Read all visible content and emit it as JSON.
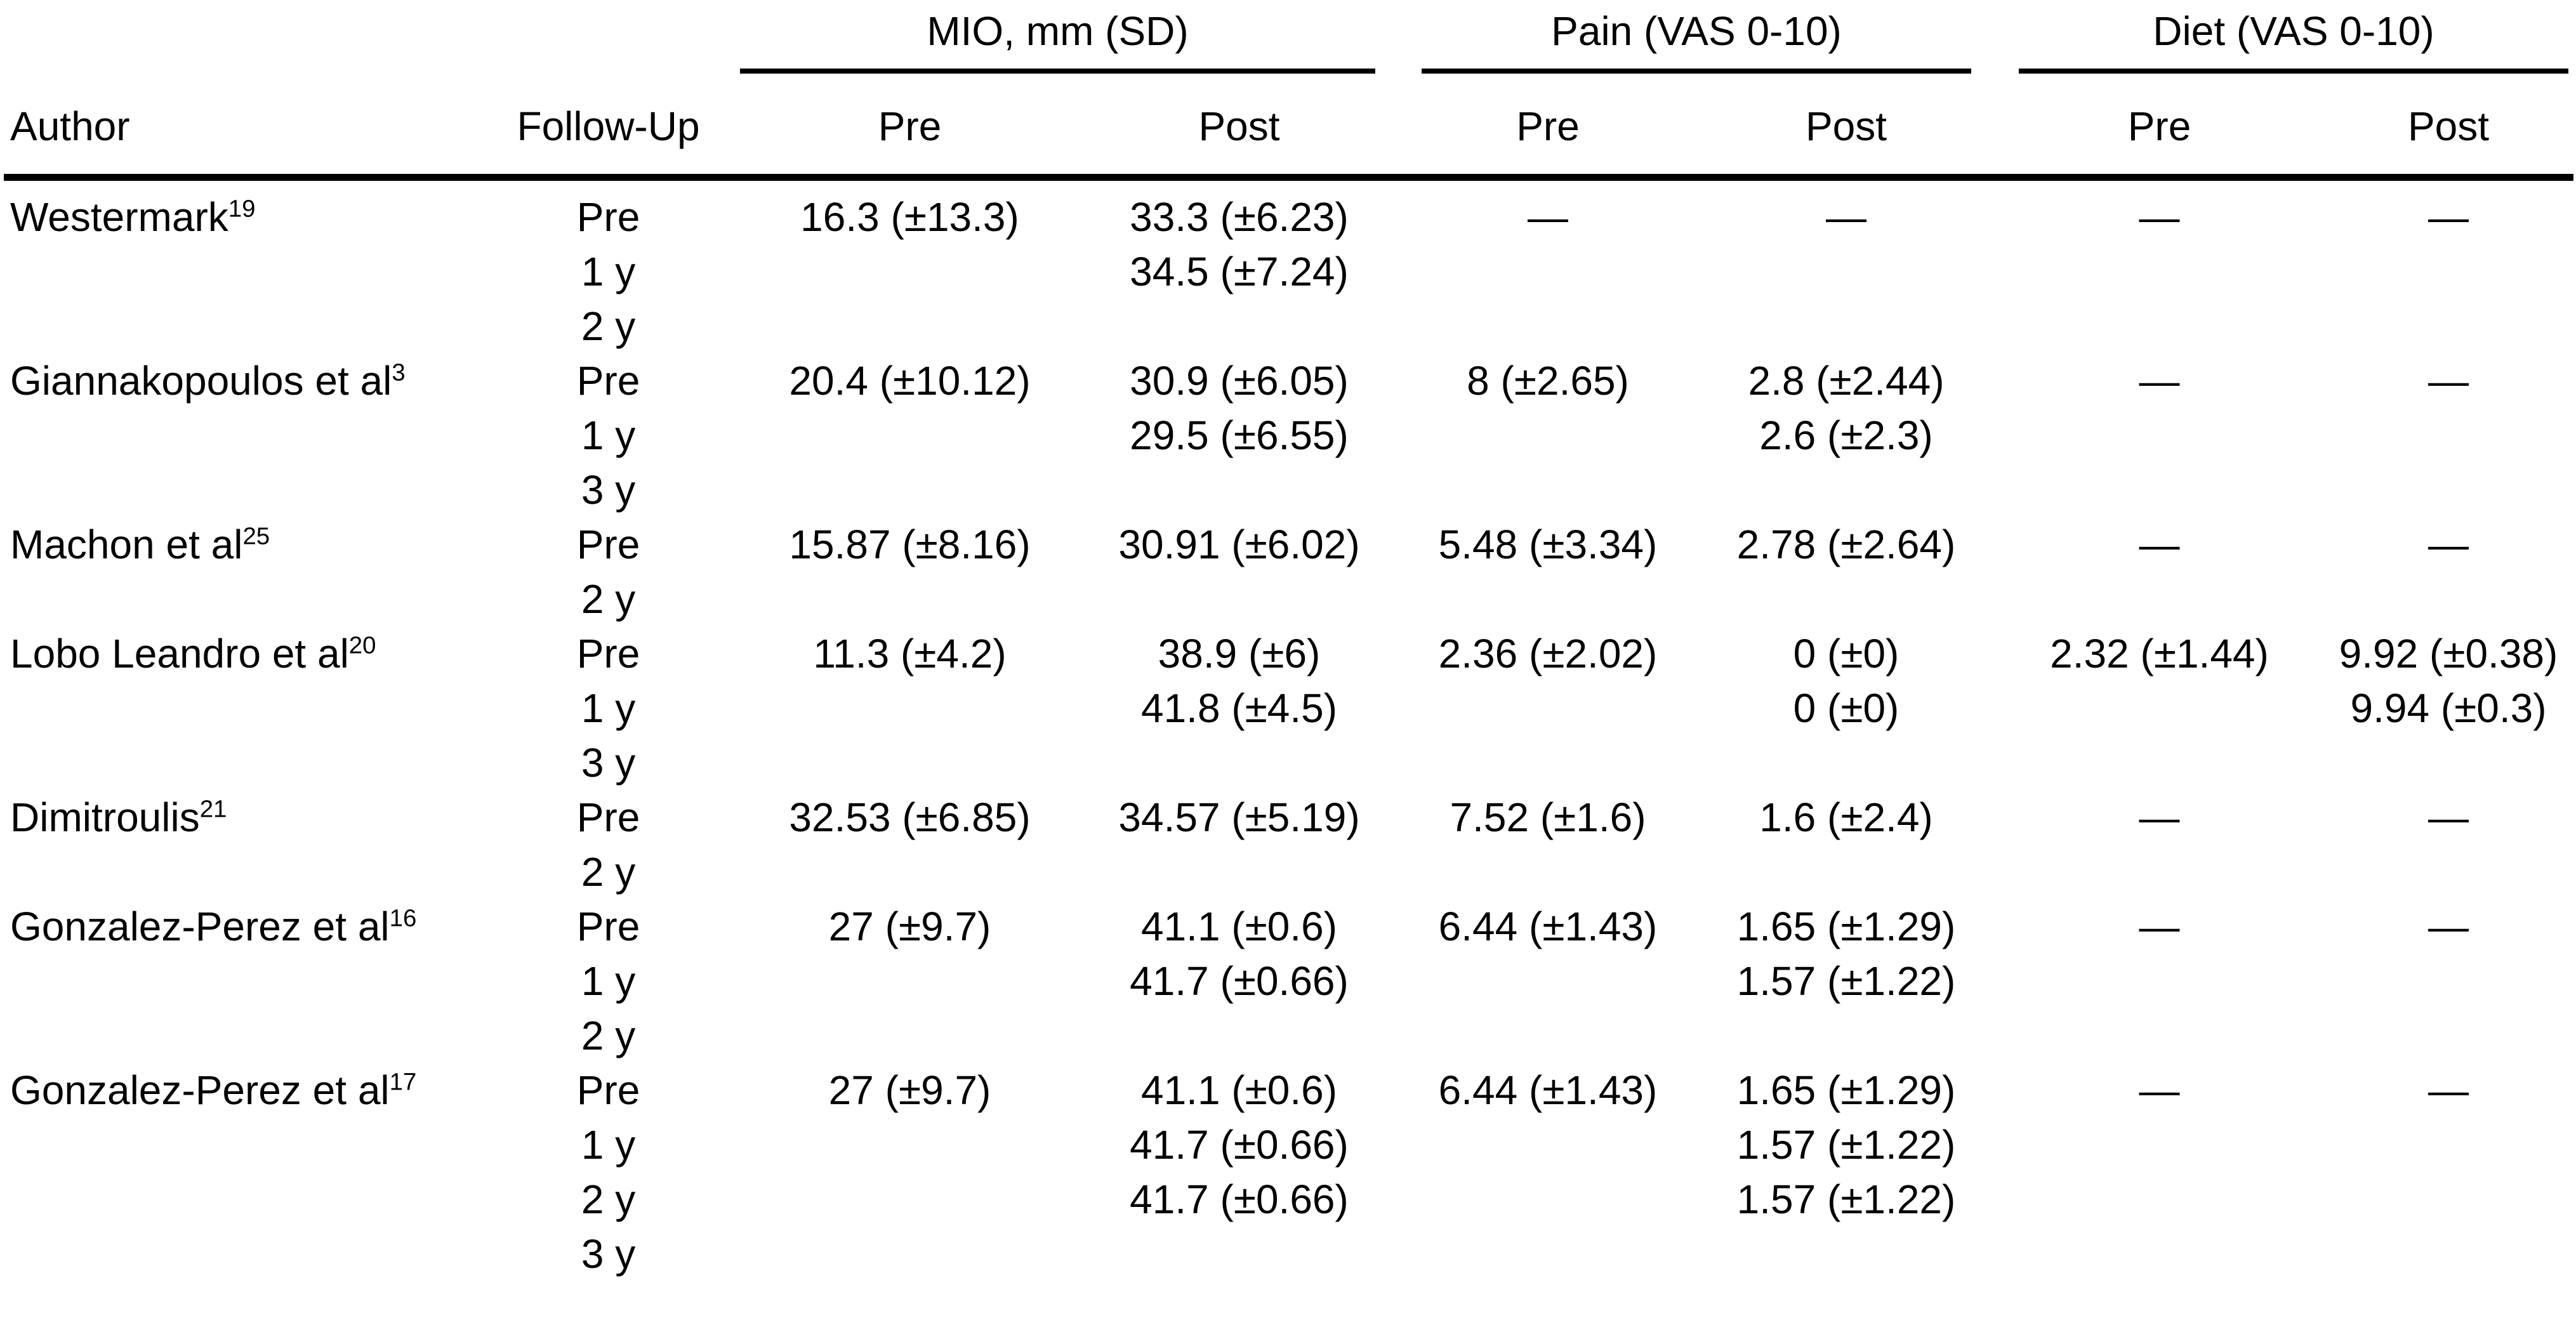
{
  "page": {
    "background": "#ffffff",
    "text_color": "#000000"
  },
  "table": {
    "groups": [
      {
        "label": "MIO, mm (SD)"
      },
      {
        "label": "Pain (VAS 0-10)"
      },
      {
        "label": "Diet (VAS 0-10)"
      }
    ],
    "column_headers": {
      "author": "Author",
      "followup": "Follow-Up",
      "pre": "Pre",
      "post": "Post"
    },
    "empty_marker": "—",
    "rows": [
      {
        "author": "Westermark",
        "author_ref": "19",
        "followup": "Pre",
        "mio_pre": "16.3 (±13.3)",
        "mio_post": "33.3 (±6.23)",
        "pain_pre": "—",
        "pain_post": "—",
        "diet_pre": "—",
        "diet_post": "—"
      },
      {
        "author": "",
        "author_ref": "",
        "followup": "1 y",
        "mio_pre": "",
        "mio_post": "34.5 (±7.24)",
        "pain_pre": "",
        "pain_post": "",
        "diet_pre": "",
        "diet_post": ""
      },
      {
        "author": "",
        "author_ref": "",
        "followup": "2 y",
        "mio_pre": "",
        "mio_post": "",
        "pain_pre": "",
        "pain_post": "",
        "diet_pre": "",
        "diet_post": ""
      },
      {
        "author": "Giannakopoulos et al",
        "author_ref": "3",
        "followup": "Pre",
        "mio_pre": "20.4 (±10.12)",
        "mio_post": "30.9 (±6.05)",
        "pain_pre": "8 (±2.65)",
        "pain_post": "2.8 (±2.44)",
        "diet_pre": "—",
        "diet_post": "—"
      },
      {
        "author": "",
        "author_ref": "",
        "followup": "1 y",
        "mio_pre": "",
        "mio_post": "29.5 (±6.55)",
        "pain_pre": "",
        "pain_post": "2.6 (±2.3)",
        "diet_pre": "",
        "diet_post": ""
      },
      {
        "author": "",
        "author_ref": "",
        "followup": "3 y",
        "mio_pre": "",
        "mio_post": "",
        "pain_pre": "",
        "pain_post": "",
        "diet_pre": "",
        "diet_post": ""
      },
      {
        "author": "Machon et al",
        "author_ref": "25",
        "followup": "Pre",
        "mio_pre": "15.87 (±8.16)",
        "mio_post": "30.91 (±6.02)",
        "pain_pre": "5.48 (±3.34)",
        "pain_post": "2.78 (±2.64)",
        "diet_pre": "—",
        "diet_post": "—"
      },
      {
        "author": "",
        "author_ref": "",
        "followup": "2 y",
        "mio_pre": "",
        "mio_post": "",
        "pain_pre": "",
        "pain_post": "",
        "diet_pre": "",
        "diet_post": ""
      },
      {
        "author": "Lobo Leandro et al",
        "author_ref": "20",
        "followup": "Pre",
        "mio_pre": "11.3 (±4.2)",
        "mio_post": "38.9 (±6)",
        "pain_pre": "2.36 (±2.02)",
        "pain_post": "0 (±0)",
        "diet_pre": "2.32 (±1.44)",
        "diet_post": "9.92 (±0.38)"
      },
      {
        "author": "",
        "author_ref": "",
        "followup": "1 y",
        "mio_pre": "",
        "mio_post": "41.8 (±4.5)",
        "pain_pre": "",
        "pain_post": "0 (±0)",
        "diet_pre": "",
        "diet_post": "9.94 (±0.3)"
      },
      {
        "author": "",
        "author_ref": "",
        "followup": "3 y",
        "mio_pre": "",
        "mio_post": "",
        "pain_pre": "",
        "pain_post": "",
        "diet_pre": "",
        "diet_post": ""
      },
      {
        "author": "Dimitroulis",
        "author_ref": "21",
        "followup": "Pre",
        "mio_pre": "32.53 (±6.85)",
        "mio_post": "34.57 (±5.19)",
        "pain_pre": "7.52 (±1.6)",
        "pain_post": "1.6 (±2.4)",
        "diet_pre": "—",
        "diet_post": "—"
      },
      {
        "author": "",
        "author_ref": "",
        "followup": "2 y",
        "mio_pre": "",
        "mio_post": "",
        "pain_pre": "",
        "pain_post": "",
        "diet_pre": "",
        "diet_post": ""
      },
      {
        "author": "Gonzalez-Perez et al",
        "author_ref": "16",
        "followup": "Pre",
        "mio_pre": "27 (±9.7)",
        "mio_post": "41.1 (±0.6)",
        "pain_pre": "6.44 (±1.43)",
        "pain_post": "1.65 (±1.29)",
        "diet_pre": "—",
        "diet_post": "—"
      },
      {
        "author": "",
        "author_ref": "",
        "followup": "1 y",
        "mio_pre": "",
        "mio_post": "41.7 (±0.66)",
        "pain_pre": "",
        "pain_post": "1.57 (±1.22)",
        "diet_pre": "",
        "diet_post": ""
      },
      {
        "author": "",
        "author_ref": "",
        "followup": "2 y",
        "mio_pre": "",
        "mio_post": "",
        "pain_pre": "",
        "pain_post": "",
        "diet_pre": "",
        "diet_post": ""
      },
      {
        "author": "Gonzalez-Perez et al",
        "author_ref": "17",
        "followup": "Pre",
        "mio_pre": "27 (±9.7)",
        "mio_post": "41.1 (±0.6)",
        "pain_pre": "6.44 (±1.43)",
        "pain_post": "1.65 (±1.29)",
        "diet_pre": "—",
        "diet_post": "—"
      },
      {
        "author": "",
        "author_ref": "",
        "followup": "1 y",
        "mio_pre": "",
        "mio_post": "41.7 (±0.66)",
        "pain_pre": "",
        "pain_post": "1.57 (±1.22)",
        "diet_pre": "",
        "diet_post": ""
      },
      {
        "author": "",
        "author_ref": "",
        "followup": "2 y",
        "mio_pre": "",
        "mio_post": "41.7 (±0.66)",
        "pain_pre": "",
        "pain_post": "1.57 (±1.22)",
        "diet_pre": "",
        "diet_post": ""
      },
      {
        "author": "",
        "author_ref": "",
        "followup": "3 y",
        "mio_pre": "",
        "mio_post": "",
        "pain_pre": "",
        "pain_post": "",
        "diet_pre": "",
        "diet_post": ""
      }
    ]
  }
}
